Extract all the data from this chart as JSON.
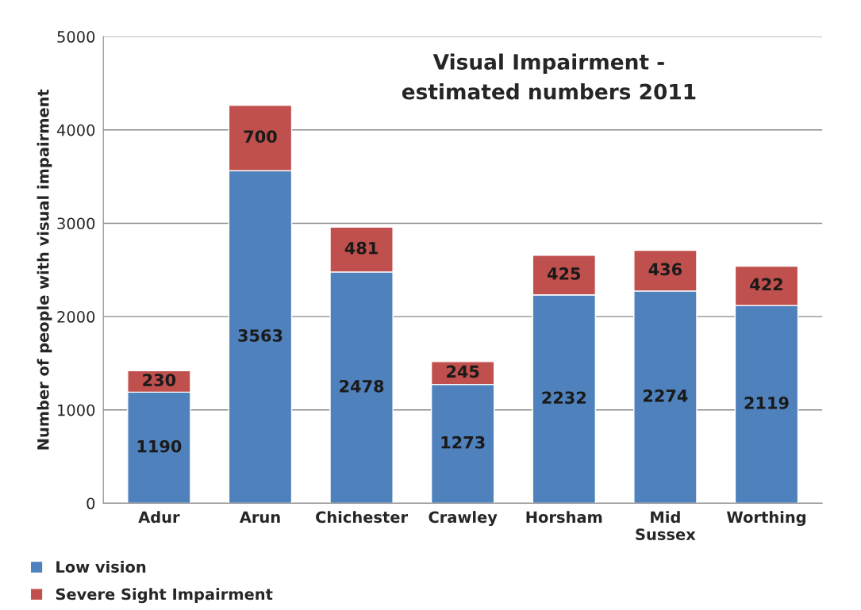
{
  "chart_data": {
    "type": "bar",
    "title": "Visual Impairment -\nestimated numbers 2011",
    "ylabel": "Number of people with visual impairment",
    "categories": [
      "Adur",
      "Arun",
      "Chichester",
      "Crawley",
      "Horsham",
      "Mid\nSussex",
      "Worthing"
    ],
    "series": [
      {
        "name": "Low vision",
        "color": "#4f81bd",
        "values": [
          1190,
          3563,
          2478,
          1273,
          2232,
          2274,
          2119
        ]
      },
      {
        "name": "Severe Sight Impairment",
        "color": "#c0504d",
        "values": [
          230,
          700,
          481,
          245,
          425,
          436,
          422
        ]
      }
    ],
    "stacked": true,
    "ylim": [
      0,
      5000
    ],
    "yticks": [
      0,
      1000,
      2000,
      3000,
      4000,
      5000
    ],
    "grid": "y",
    "legend": "bottom left",
    "data_labels": true
  }
}
